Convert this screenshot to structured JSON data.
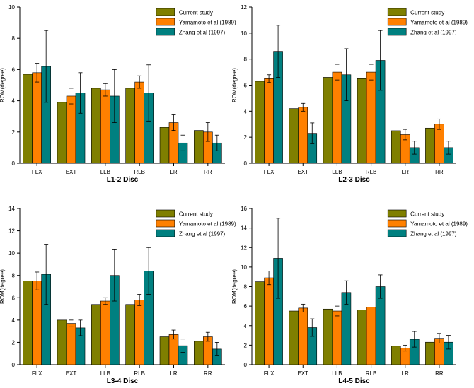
{
  "colors": {
    "current": "#7f7f00",
    "yamamoto": "#ff8000",
    "zhang": "#008080",
    "axis": "#000000",
    "error": "#000000"
  },
  "chart_data": [
    {
      "type": "bar",
      "title": "L1-2 Disc",
      "ylabel": "ROM(degree)",
      "xlabel": "",
      "ylim": [
        0,
        10
      ],
      "yticks": [
        0,
        2,
        4,
        6,
        8,
        10
      ],
      "categories": [
        "FLX",
        "EXT",
        "LLB",
        "RLB",
        "LR",
        "RR"
      ],
      "legend_position": "top-right",
      "series": [
        {
          "name": "Current study",
          "color_key": "current",
          "values": [
            5.7,
            3.9,
            4.8,
            4.8,
            2.3,
            2.1
          ],
          "errors": [
            null,
            null,
            null,
            null,
            null,
            null
          ]
        },
        {
          "name": "Yamamoto et al (1989)",
          "color_key": "yamamoto",
          "values": [
            5.8,
            4.3,
            4.7,
            5.2,
            2.6,
            2.0
          ],
          "errors": [
            0.6,
            0.5,
            0.4,
            0.4,
            0.5,
            0.6
          ]
        },
        {
          "name": "Zhang et al (1997)",
          "color_key": "zhang",
          "values": [
            6.2,
            4.5,
            4.3,
            4.5,
            1.3,
            1.3
          ],
          "errors": [
            2.3,
            1.3,
            1.7,
            1.8,
            0.5,
            0.5
          ]
        }
      ]
    },
    {
      "type": "bar",
      "title": "L2-3 Disc",
      "ylabel": "ROM(degree)",
      "xlabel": "",
      "ylim": [
        0,
        12
      ],
      "yticks": [
        0,
        2,
        4,
        6,
        8,
        10,
        12
      ],
      "categories": [
        "FLX",
        "EXT",
        "LLB",
        "RLB",
        "LR",
        "RR"
      ],
      "legend_position": "top-right",
      "series": [
        {
          "name": "Current study",
          "color_key": "current",
          "values": [
            6.3,
            4.2,
            6.6,
            6.5,
            2.5,
            2.7
          ],
          "errors": [
            null,
            null,
            null,
            null,
            null,
            null
          ]
        },
        {
          "name": "Yamamoto et al (1989)",
          "color_key": "yamamoto",
          "values": [
            6.5,
            4.3,
            7.0,
            7.0,
            2.2,
            3.0
          ],
          "errors": [
            0.3,
            0.3,
            0.6,
            0.6,
            0.4,
            0.4
          ]
        },
        {
          "name": "Zhang et al (1997)",
          "color_key": "zhang",
          "values": [
            8.6,
            2.3,
            6.8,
            7.9,
            1.2,
            1.2
          ],
          "errors": [
            2.0,
            0.8,
            2.0,
            2.3,
            0.5,
            0.5
          ]
        }
      ]
    },
    {
      "type": "bar",
      "title": "L3-4 Disc",
      "ylabel": "ROM(degree)",
      "xlabel": "",
      "ylim": [
        0,
        14
      ],
      "yticks": [
        0,
        2,
        4,
        6,
        8,
        10,
        12,
        14
      ],
      "categories": [
        "FLX",
        "EXT",
        "LLB",
        "RLB",
        "LR",
        "RR"
      ],
      "legend_position": "top-right",
      "series": [
        {
          "name": "Current study",
          "color_key": "current",
          "values": [
            7.5,
            4.0,
            5.4,
            5.4,
            2.5,
            2.1
          ],
          "errors": [
            null,
            null,
            null,
            null,
            null,
            null
          ]
        },
        {
          "name": "Yamamoto et al (1989)",
          "color_key": "yamamoto",
          "values": [
            7.5,
            3.7,
            5.7,
            5.8,
            2.7,
            2.5
          ],
          "errors": [
            0.8,
            0.3,
            0.3,
            0.5,
            0.4,
            0.4
          ]
        },
        {
          "name": "Zhang et al (1997)",
          "color_key": "zhang",
          "values": [
            8.1,
            3.3,
            8.0,
            8.4,
            1.7,
            1.4
          ],
          "errors": [
            2.7,
            0.7,
            2.3,
            2.1,
            0.6,
            0.6
          ]
        }
      ]
    },
    {
      "type": "bar",
      "title": "L4-5 Disc",
      "ylabel": "ROM(degree)",
      "xlabel": "",
      "ylim": [
        0,
        16
      ],
      "yticks": [
        0,
        2,
        4,
        6,
        8,
        10,
        12,
        14,
        16
      ],
      "categories": [
        "FLX",
        "EXT",
        "LLB",
        "RLB",
        "LR",
        "RR"
      ],
      "legend_position": "top-right",
      "series": [
        {
          "name": "Current study",
          "color_key": "current",
          "values": [
            8.5,
            5.5,
            5.7,
            5.6,
            1.9,
            2.3
          ],
          "errors": [
            null,
            null,
            null,
            null,
            null,
            null
          ]
        },
        {
          "name": "Yamamoto et al (1989)",
          "color_key": "yamamoto",
          "values": [
            8.9,
            5.8,
            5.5,
            5.9,
            1.7,
            2.7
          ],
          "errors": [
            0.7,
            0.4,
            0.5,
            0.5,
            0.3,
            0.5
          ]
        },
        {
          "name": "Zhang et al (1997)",
          "color_key": "zhang",
          "values": [
            10.9,
            3.8,
            7.4,
            8.0,
            2.6,
            2.3
          ],
          "errors": [
            4.1,
            0.9,
            1.2,
            1.2,
            0.8,
            0.7
          ]
        }
      ]
    }
  ]
}
